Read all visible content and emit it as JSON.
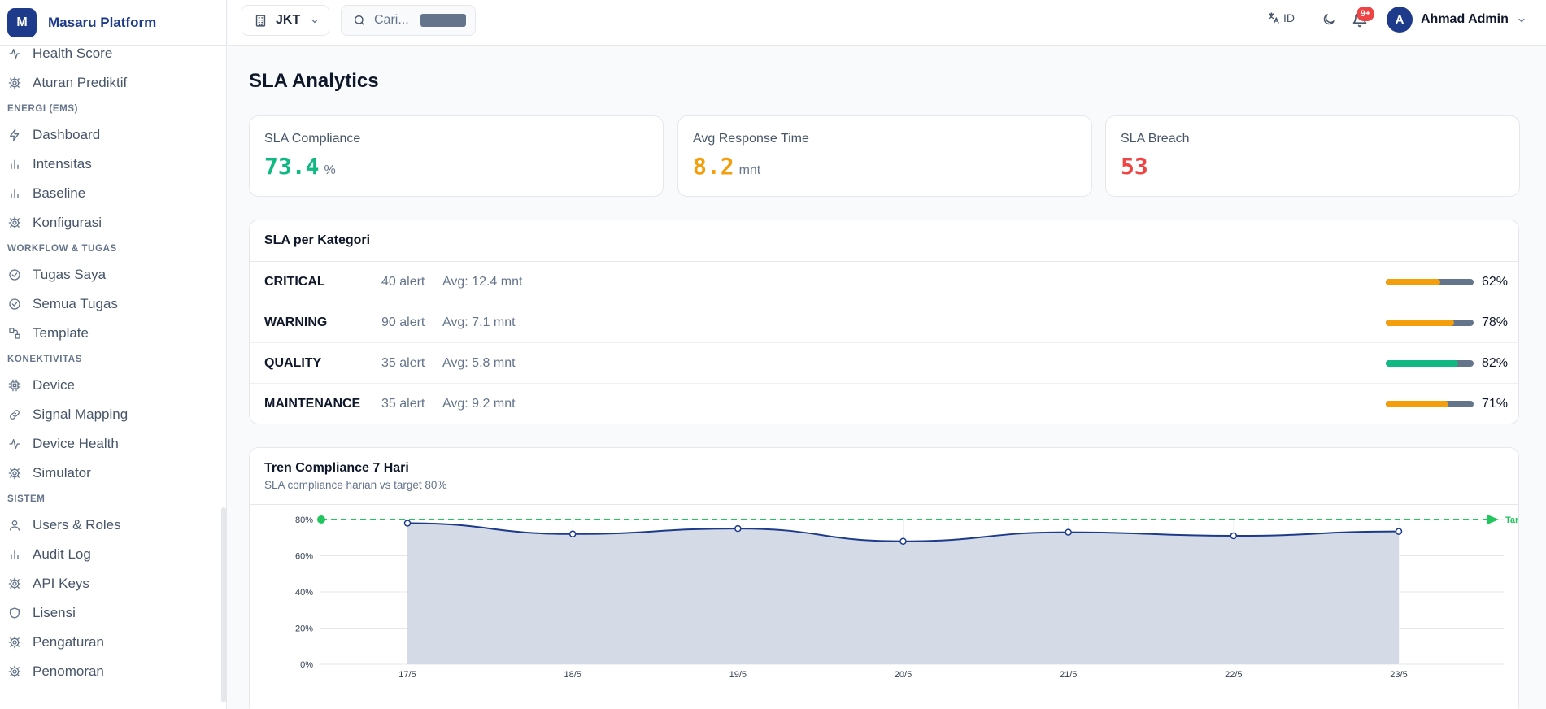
{
  "brand": {
    "logo_letter": "M",
    "name": "Masaru Platform"
  },
  "sidebar": {
    "groups": [
      {
        "title": "",
        "items": [
          {
            "label": "Health Score",
            "icon": "activity-icon"
          },
          {
            "label": "Aturan Prediktif",
            "icon": "gear-icon"
          }
        ]
      },
      {
        "title": "ENERGI (EMS)",
        "items": [
          {
            "label": "Dashboard",
            "icon": "lightning-icon"
          },
          {
            "label": "Intensitas",
            "icon": "bar-chart-icon"
          },
          {
            "label": "Baseline",
            "icon": "bar-chart-icon"
          },
          {
            "label": "Konfigurasi",
            "icon": "gear-icon"
          }
        ]
      },
      {
        "title": "WORKFLOW & TUGAS",
        "items": [
          {
            "label": "Tugas Saya",
            "icon": "check-circle-icon"
          },
          {
            "label": "Semua Tugas",
            "icon": "check-circle-icon"
          },
          {
            "label": "Template",
            "icon": "workflow-icon"
          }
        ]
      },
      {
        "title": "KONEKTIVITAS",
        "items": [
          {
            "label": "Device",
            "icon": "chip-icon"
          },
          {
            "label": "Signal Mapping",
            "icon": "link-icon"
          },
          {
            "label": "Device Health",
            "icon": "activity-icon"
          },
          {
            "label": "Simulator",
            "icon": "gear-icon"
          }
        ]
      },
      {
        "title": "SISTEM",
        "items": [
          {
            "label": "Users & Roles",
            "icon": "user-icon"
          },
          {
            "label": "Audit Log",
            "icon": "bar-chart-icon"
          },
          {
            "label": "API Keys",
            "icon": "gear-icon"
          },
          {
            "label": "Lisensi",
            "icon": "shield-icon"
          },
          {
            "label": "Pengaturan",
            "icon": "gear-icon"
          },
          {
            "label": "Penomoran",
            "icon": "gear-icon"
          }
        ]
      }
    ]
  },
  "header": {
    "site": "JKT",
    "search_placeholder": "Cari...",
    "language": "ID",
    "notifications_badge": "9+",
    "user_initial": "A",
    "user_name": "Ahmad Admin"
  },
  "page": {
    "title": "SLA Analytics"
  },
  "kpis": [
    {
      "label": "SLA Compliance",
      "value": "73.4",
      "unit": "%",
      "color": "#10b981"
    },
    {
      "label": "Avg Response Time",
      "value": "8.2",
      "unit": "mnt",
      "color": "#f59e0b"
    },
    {
      "label": "SLA Breach",
      "value": "53",
      "unit": "",
      "color": "#ef4444"
    }
  ],
  "categories": {
    "title": "SLA per Kategori",
    "rows": [
      {
        "name": "CRITICAL",
        "count": "40 alert",
        "avg": "Avg: 12.4 mnt",
        "pct": 62,
        "pct_label": "62%",
        "color": "#f59e0b"
      },
      {
        "name": "WARNING",
        "count": "90 alert",
        "avg": "Avg: 7.1 mnt",
        "pct": 78,
        "pct_label": "78%",
        "color": "#f59e0b"
      },
      {
        "name": "QUALITY",
        "count": "35 alert",
        "avg": "Avg: 5.8 mnt",
        "pct": 82,
        "pct_label": "82%",
        "color": "#10b981"
      },
      {
        "name": "MAINTENANCE",
        "count": "35 alert",
        "avg": "Avg: 9.2 mnt",
        "pct": 71,
        "pct_label": "71%",
        "color": "#f59e0b"
      }
    ]
  },
  "trend": {
    "title": "Tren Compliance 7 Hari",
    "subtitle": "SLA compliance harian vs target 80%"
  },
  "chart_data": {
    "type": "area",
    "x": [
      "17/5",
      "18/5",
      "19/5",
      "20/5",
      "21/5",
      "22/5",
      "23/5"
    ],
    "series": [
      {
        "values": [
          78,
          72,
          75,
          68,
          73,
          71,
          73.4
        ]
      }
    ],
    "target": {
      "value": 80,
      "label": "Target"
    },
    "yticks": [
      "0%",
      "20%",
      "40%",
      "60%",
      "80%"
    ],
    "ylim": [
      0,
      80
    ],
    "grid": true,
    "colors": {
      "line": "#1e3a8a",
      "area": "#d4dbe6",
      "target": "#22c55e"
    }
  }
}
